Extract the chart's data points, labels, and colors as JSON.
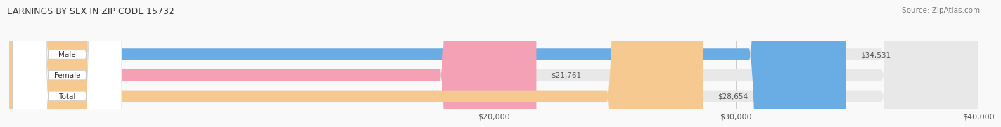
{
  "title": "EARNINGS BY SEX IN ZIP CODE 15732",
  "source": "Source: ZipAtlas.com",
  "categories": [
    "Male",
    "Female",
    "Total"
  ],
  "values": [
    34531,
    21761,
    28654
  ],
  "bar_colors": [
    "#6aade4",
    "#f4a0b5",
    "#f5c990"
  ],
  "bar_bg_color": "#e8e8e8",
  "xmin": 0,
  "xmax": 40000,
  "xticks": [
    20000,
    30000,
    40000
  ],
  "xtick_labels": [
    "$20,000",
    "$30,000",
    "$40,000"
  ],
  "value_labels": [
    "$34,531",
    "$21,761",
    "$28,654"
  ],
  "title_fontsize": 9,
  "source_fontsize": 7.5,
  "bar_label_fontsize": 7.5,
  "tick_fontsize": 8,
  "fig_bg_color": "#f9f9f9",
  "bar_height": 0.55
}
